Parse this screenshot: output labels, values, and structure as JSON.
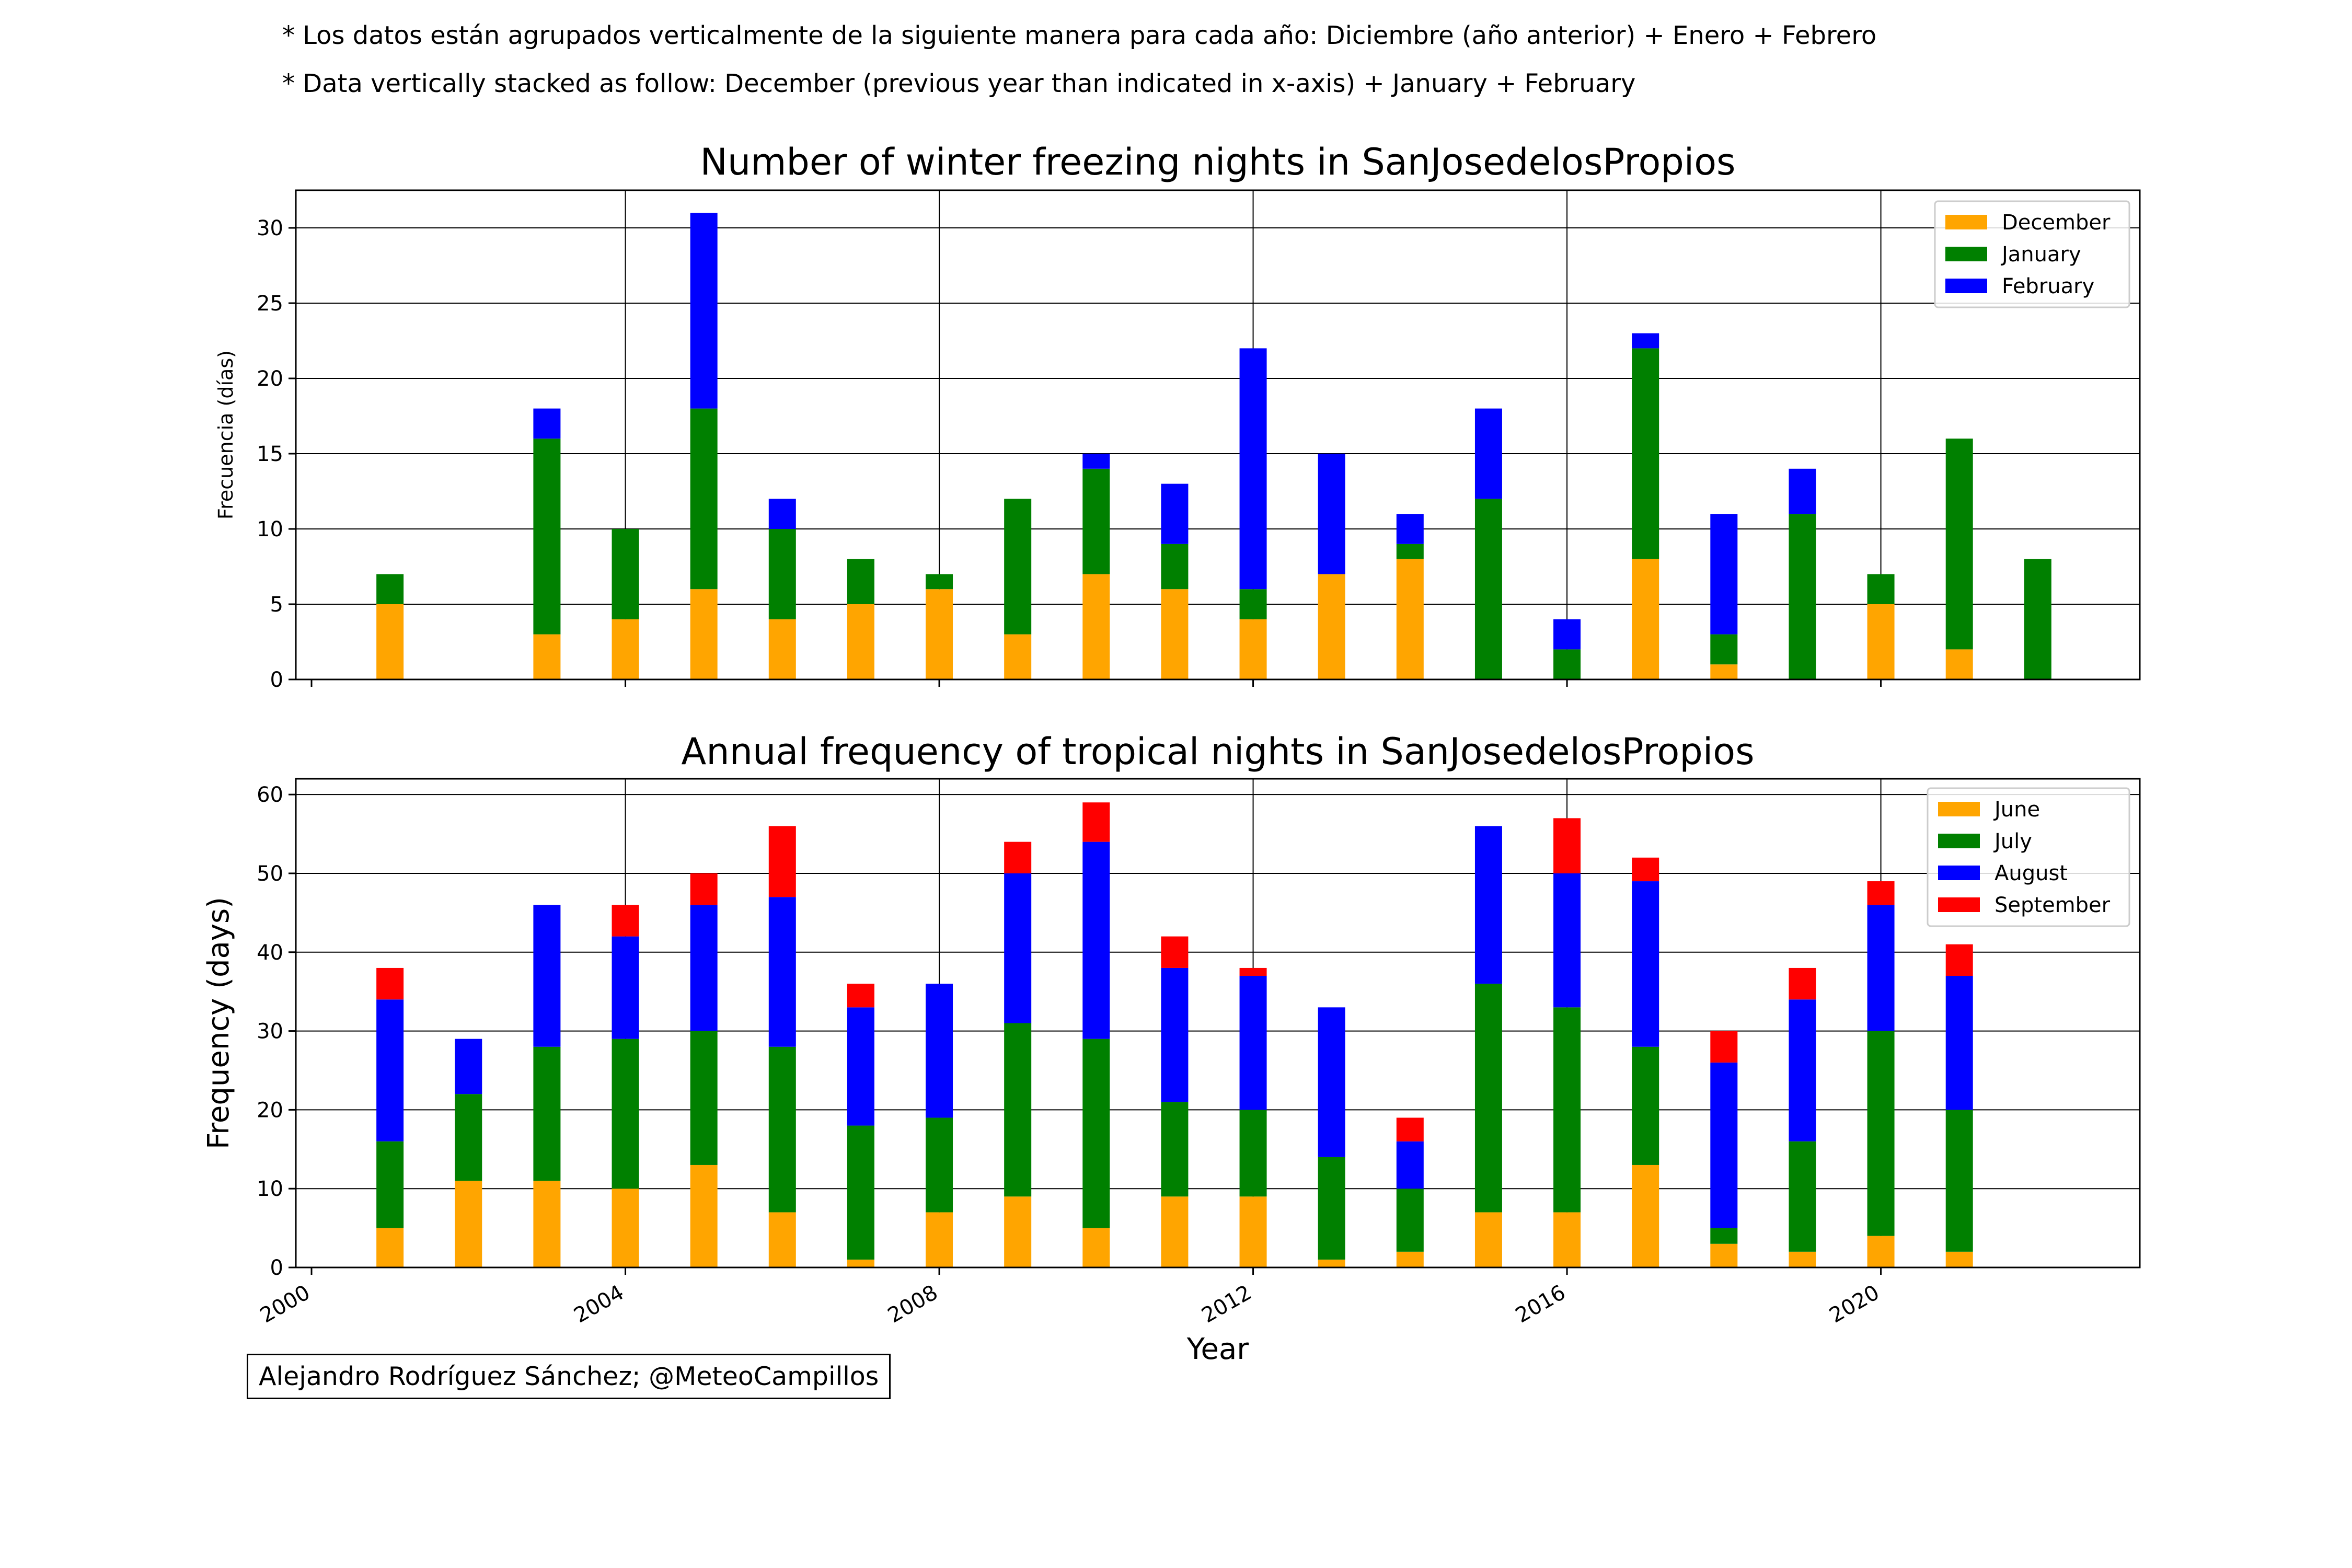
{
  "notes": {
    "line1": "* Los datos están agrupados verticalmente de la siguiente manera para cada año: Diciembre (año anterior) + Enero  + Febrero",
    "line2": "* Data vertically stacked as follow: December (previous year than indicated in x-axis) + January  + February"
  },
  "credit": "Alejandro Rodríguez Sánchez; @MeteoCampillos",
  "chart_data": [
    {
      "type": "bar",
      "stacked": true,
      "title": "Number of winter freezing nights in SanJosedelosPropios",
      "xlabel": "",
      "ylabel": "Frecuencia (días)",
      "xlim": [
        1999.8,
        2023.3
      ],
      "ylim": [
        0,
        32.5
      ],
      "yticks": [
        0,
        5,
        10,
        15,
        20,
        25,
        30
      ],
      "xticks": [
        2000,
        2004,
        2008,
        2012,
        2016,
        2020
      ],
      "grid": true,
      "legend_position": "top-right",
      "x": [
        2001,
        2002,
        2003,
        2004,
        2005,
        2006,
        2007,
        2008,
        2009,
        2010,
        2011,
        2012,
        2013,
        2014,
        2015,
        2016,
        2017,
        2018,
        2019,
        2020,
        2021,
        2022
      ],
      "series": [
        {
          "name": "December",
          "color": "#ffa500",
          "values": [
            5,
            0,
            3,
            4,
            6,
            4,
            5,
            6,
            3,
            7,
            6,
            4,
            7,
            8,
            0,
            0,
            8,
            1,
            0,
            5,
            2,
            0
          ]
        },
        {
          "name": "January",
          "color": "#008000",
          "values": [
            2,
            0,
            13,
            6,
            12,
            6,
            3,
            1,
            9,
            7,
            3,
            2,
            0,
            1,
            12,
            2,
            14,
            2,
            11,
            2,
            14,
            8
          ]
        },
        {
          "name": "February",
          "color": "#0000ff",
          "values": [
            0,
            0,
            2,
            0,
            13,
            2,
            0,
            0,
            0,
            1,
            4,
            16,
            8,
            2,
            6,
            2,
            1,
            8,
            3,
            0,
            0,
            0
          ]
        }
      ]
    },
    {
      "type": "bar",
      "stacked": true,
      "title": "Annual frequency of tropical nights in SanJosedelosPropios",
      "xlabel": "Year",
      "ylabel": "Frequency (days)",
      "xlim": [
        1999.8,
        2023.3
      ],
      "ylim": [
        0,
        62
      ],
      "yticks": [
        0,
        10,
        20,
        30,
        40,
        50,
        60
      ],
      "xticks": [
        2000,
        2004,
        2008,
        2012,
        2016,
        2020
      ],
      "grid": true,
      "legend_position": "top-right",
      "x": [
        2001,
        2002,
        2003,
        2004,
        2005,
        2006,
        2007,
        2008,
        2009,
        2010,
        2011,
        2012,
        2013,
        2014,
        2015,
        2016,
        2017,
        2018,
        2019,
        2020,
        2021
      ],
      "series": [
        {
          "name": "June",
          "color": "#ffa500",
          "values": [
            5,
            11,
            11,
            10,
            13,
            7,
            1,
            7,
            9,
            5,
            9,
            9,
            1,
            2,
            7,
            7,
            13,
            3,
            2,
            4,
            2
          ]
        },
        {
          "name": "July",
          "color": "#008000",
          "values": [
            11,
            11,
            17,
            19,
            17,
            21,
            17,
            12,
            22,
            24,
            12,
            11,
            13,
            8,
            29,
            26,
            15,
            2,
            14,
            26,
            18
          ]
        },
        {
          "name": "August",
          "color": "#0000ff",
          "values": [
            18,
            7,
            18,
            13,
            16,
            19,
            15,
            17,
            19,
            25,
            17,
            17,
            19,
            6,
            20,
            17,
            21,
            21,
            18,
            16,
            17
          ]
        },
        {
          "name": "September",
          "color": "#ff0000",
          "values": [
            4,
            0,
            0,
            4,
            4,
            9,
            3,
            0,
            4,
            5,
            4,
            1,
            0,
            3,
            0,
            7,
            3,
            4,
            4,
            3,
            4
          ]
        }
      ]
    }
  ]
}
